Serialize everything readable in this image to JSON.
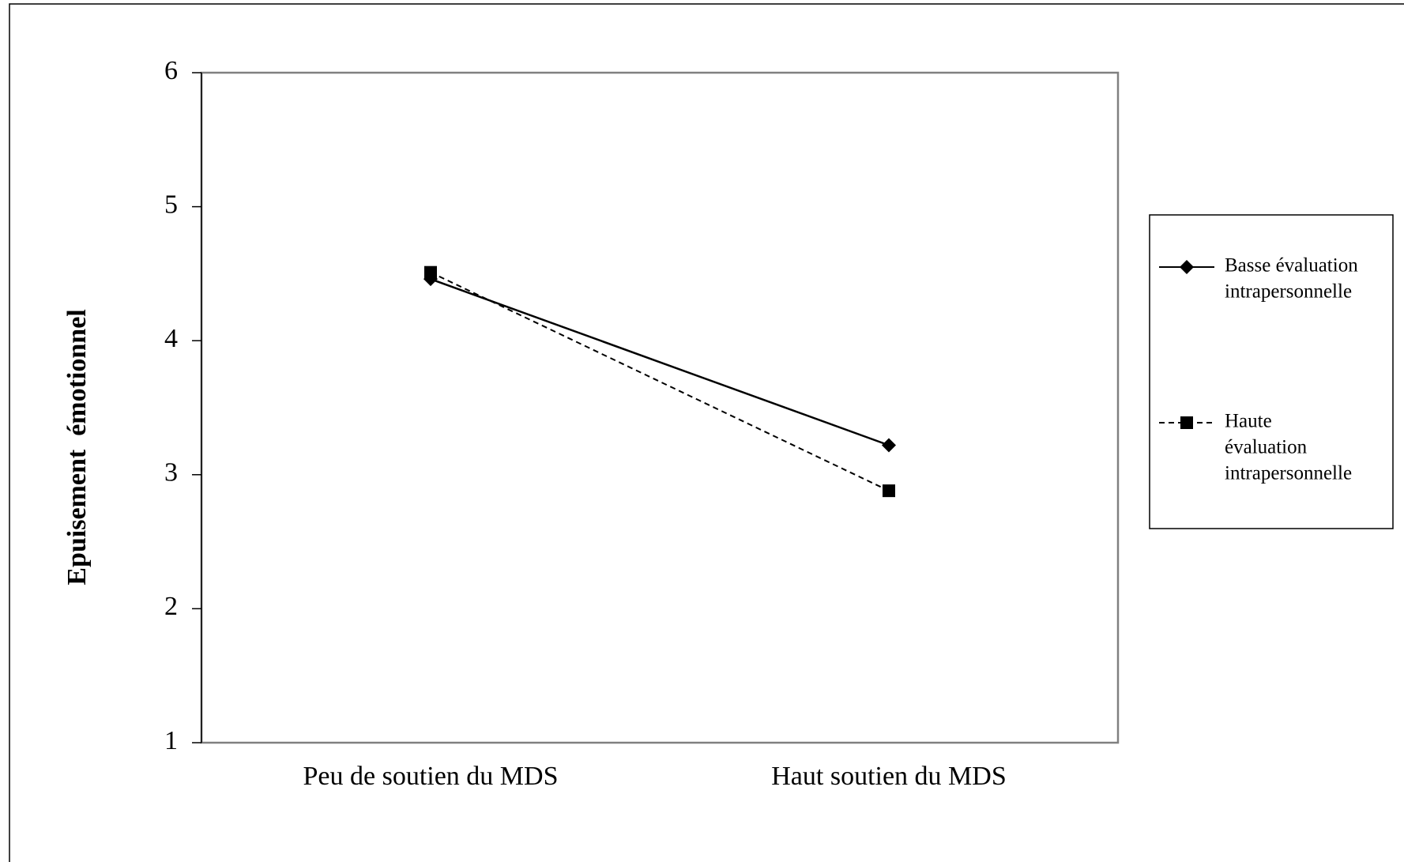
{
  "chart_data": {
    "type": "line",
    "title": "",
    "xlabel": "",
    "ylabel": "Epuisement  émotionnel",
    "categories": [
      "Peu de soutien du MDS",
      "Haut soutien du MDS"
    ],
    "ylim": [
      1,
      6
    ],
    "yticks": [
      1,
      2,
      3,
      4,
      5,
      6
    ],
    "grid": false,
    "legend_position": "right",
    "series": [
      {
        "name": "Basse évaluation intrapersonnelle",
        "name_lines": [
          "Basse évaluation",
          "intrapersonnelle"
        ],
        "values": [
          4.46,
          3.22
        ],
        "marker": "diamond",
        "line_style": "solid",
        "color": "#000000"
      },
      {
        "name": "Haute évaluation intrapersonnelle",
        "name_lines": [
          "Haute",
          "évaluation",
          "intrapersonnelle"
        ],
        "values": [
          4.51,
          2.88
        ],
        "marker": "square",
        "line_style": "dashed",
        "color": "#000000"
      }
    ]
  }
}
